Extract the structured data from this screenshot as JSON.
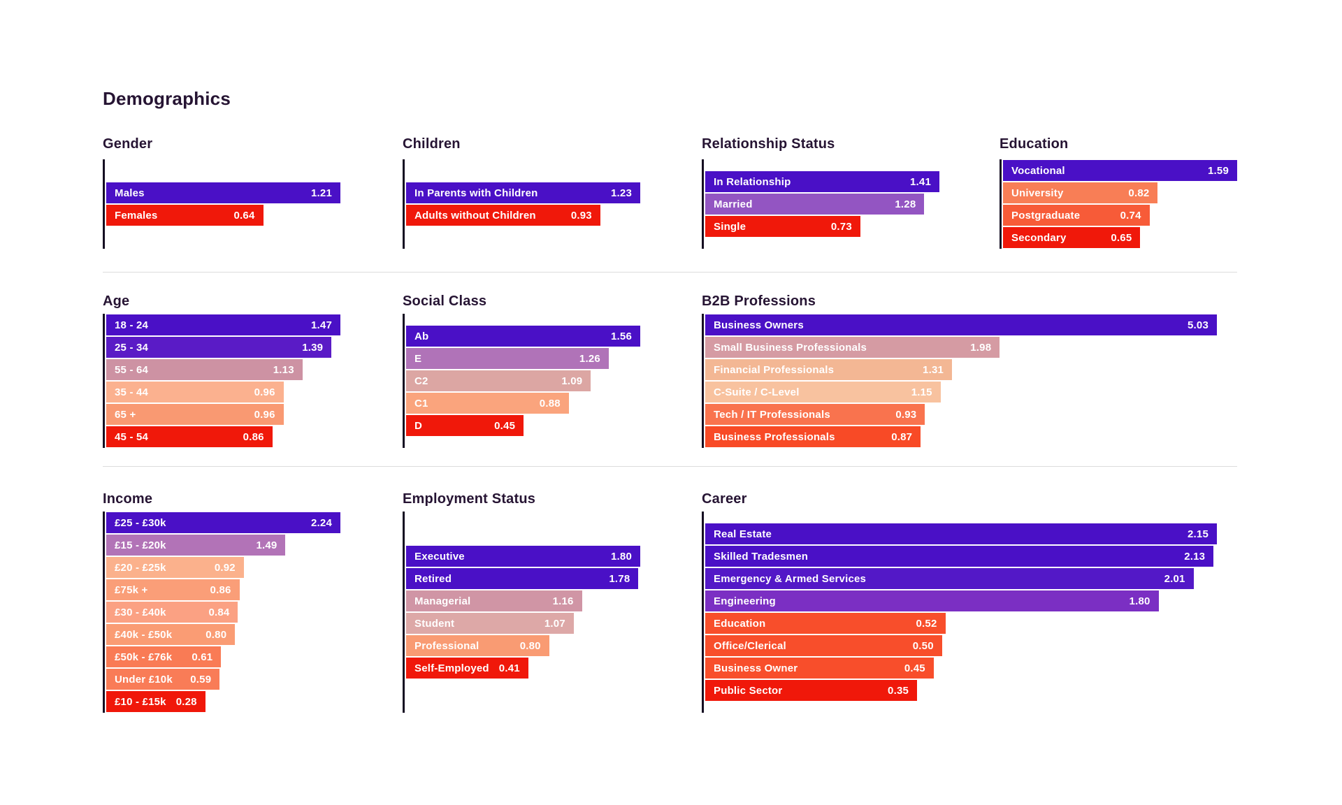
{
  "page": {
    "title": "Demographics",
    "background": "#ffffff",
    "title_color": "#261433",
    "divider_color": "#dcdcdc",
    "axis_color": "#150d22",
    "bar_text_color": "#ffffff"
  },
  "chart_data": [
    {
      "type": "bar",
      "orientation": "horizontal",
      "title": "Gender",
      "categories": [
        "Males",
        "Females"
      ],
      "values": [
        1.21,
        0.64
      ],
      "bar_colors": [
        "#4a10c6",
        "#f0180a"
      ],
      "grid": false,
      "legend": "none",
      "value_labels": "inside-right, 2 decimals"
    },
    {
      "type": "bar",
      "orientation": "horizontal",
      "title": "Children",
      "categories": [
        "In Parents with Children",
        "Adults without Children"
      ],
      "values": [
        1.23,
        0.93
      ],
      "bar_colors": [
        "#4a10c6",
        "#f0180a"
      ],
      "grid": false,
      "legend": "none"
    },
    {
      "type": "bar",
      "orientation": "horizontal",
      "title": "Relationship Status",
      "categories": [
        "In Relationship",
        "Married",
        "Single"
      ],
      "values": [
        1.41,
        1.28,
        0.73
      ],
      "bar_colors": [
        "#4a10c6",
        "#9355c2",
        "#f0180a"
      ],
      "grid": false,
      "legend": "none"
    },
    {
      "type": "bar",
      "orientation": "horizontal",
      "title": "Education",
      "categories": [
        "Vocational",
        "University",
        "Postgraduate",
        "Secondary"
      ],
      "values": [
        1.59,
        0.82,
        0.74,
        0.65
      ],
      "bar_colors": [
        "#4a10c6",
        "#f87e56",
        "#f75b38",
        "#f0180a"
      ],
      "grid": false,
      "legend": "none"
    },
    {
      "type": "bar",
      "orientation": "horizontal",
      "title": "Age",
      "categories": [
        "18 - 24",
        "25 - 34",
        "55 - 64",
        "35 - 44",
        "65 +",
        "45 - 54"
      ],
      "values": [
        1.47,
        1.39,
        1.13,
        0.96,
        0.96,
        0.86
      ],
      "bar_colors": [
        "#4a10c6",
        "#5a1bc6",
        "#cd92a3",
        "#fbb18f",
        "#f99972",
        "#f0180a"
      ],
      "grid": false,
      "legend": "none"
    },
    {
      "type": "bar",
      "orientation": "horizontal",
      "title": "Social Class",
      "categories": [
        "Ab",
        "E",
        "C2",
        "C1",
        "D"
      ],
      "values": [
        1.56,
        1.26,
        1.09,
        0.88,
        0.45
      ],
      "bar_colors": [
        "#4a10c6",
        "#b073b8",
        "#dca6a3",
        "#faa47d",
        "#f0180a"
      ],
      "grid": false,
      "legend": "none"
    },
    {
      "type": "bar",
      "orientation": "horizontal",
      "title": "B2B Professions",
      "categories": [
        "Business Owners",
        "Small Business Professionals",
        "Financial Professionals",
        "C-Suite / C-Level",
        "Tech / IT Professionals",
        "Business Professionals"
      ],
      "values": [
        5.03,
        1.98,
        1.31,
        1.15,
        0.93,
        0.87
      ],
      "bar_colors": [
        "#4a10c6",
        "#d59ba3",
        "#f3b794",
        "#f8c29f",
        "#f9734e",
        "#f84a26"
      ],
      "grid": false,
      "legend": "none"
    },
    {
      "type": "bar",
      "orientation": "horizontal",
      "title": "Income",
      "categories": [
        "£25 - £30k",
        "£15 - £20k",
        "£20 - £25k",
        "£75k +",
        "£30 - £40k",
        "£40k - £50k",
        "£50k - £76k",
        "Under £10k",
        "£10 - £15k"
      ],
      "values": [
        2.24,
        1.49,
        0.92,
        0.86,
        0.84,
        0.8,
        0.61,
        0.59,
        0.28
      ],
      "bar_colors": [
        "#4a10c6",
        "#b273b7",
        "#fbb18c",
        "#fa9e78",
        "#fba183",
        "#fa9c74",
        "#f97b55",
        "#f97c57",
        "#f0180a"
      ],
      "grid": false,
      "legend": "none"
    },
    {
      "type": "bar",
      "orientation": "horizontal",
      "title": "Employment Status",
      "categories": [
        "Executive",
        "Retired",
        "Managerial",
        "Student",
        "Professional",
        "Self-Employed"
      ],
      "values": [
        1.8,
        1.78,
        1.16,
        1.07,
        0.8,
        0.41
      ],
      "bar_colors": [
        "#4a10c6",
        "#4a10c6",
        "#d095a5",
        "#dda8a7",
        "#f99b73",
        "#f0180a"
      ],
      "grid": false,
      "legend": "none"
    },
    {
      "type": "bar",
      "orientation": "horizontal",
      "title": "Career",
      "categories": [
        "Real Estate",
        "Skilled Tradesmen",
        "Emergency & Armed Services",
        "Engineering",
        "Education",
        "Office/Clerical",
        "Business Owner",
        "Public Sector"
      ],
      "values": [
        2.15,
        2.13,
        2.01,
        1.8,
        0.52,
        0.5,
        0.45,
        0.35
      ],
      "bar_colors": [
        "#4a10c6",
        "#4a10c6",
        "#5318c7",
        "#7b2fc3",
        "#f84e2b",
        "#f84e2b",
        "#f84e2b",
        "#f0180a"
      ],
      "grid": false,
      "legend": "none"
    }
  ],
  "layout_hints": {
    "bar_width_rule": "min 30% of chart width plus 70% * value / chart max",
    "rows": 3,
    "value_format": "0.00"
  }
}
